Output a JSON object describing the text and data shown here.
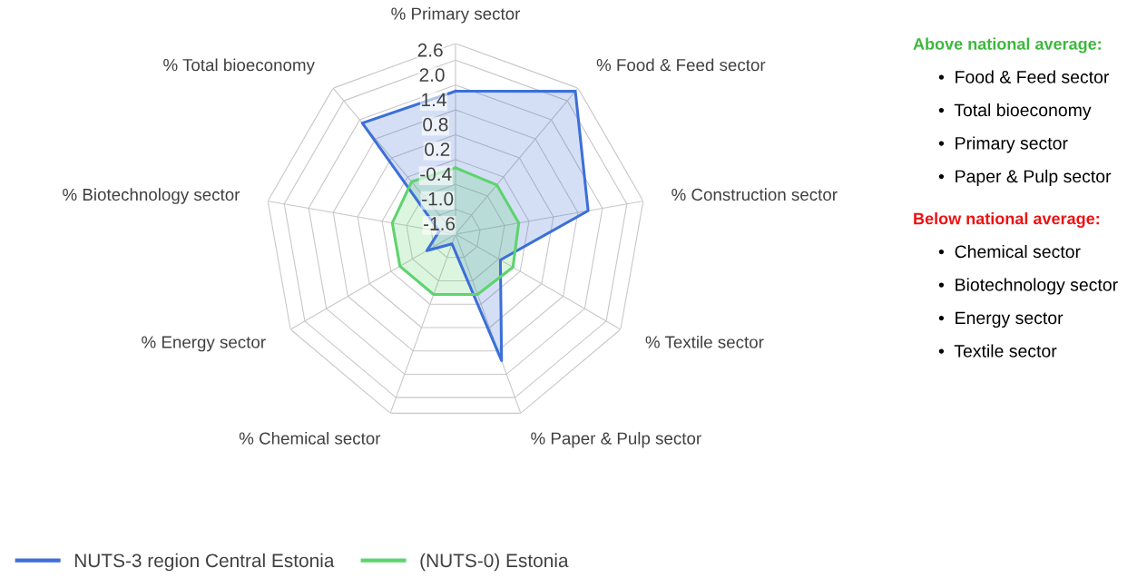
{
  "chart_data": {
    "type": "radar",
    "categories": [
      "% Primary sector",
      "% Food & Feed sector",
      "% Construction sector",
      "% Textile sector",
      "% Paper & Pulp sector",
      "% Chemical sector",
      "% Energy sector",
      "% Biotechnology sector",
      "% Total bioeconomy"
    ],
    "series": [
      {
        "name": "NUTS-3 region Central Estonia",
        "color": "#3c6fd8",
        "values": [
          1.85,
          2.9,
          1.65,
          -0.35,
          1.65,
          -1.35,
          -0.8,
          -1.2,
          1.9
        ]
      },
      {
        "name": "(NUTS-0) Estonia",
        "color": "#5ed36e",
        "values": [
          0.0,
          -0.05,
          -0.05,
          0.0,
          -0.05,
          -0.05,
          -0.05,
          -0.05,
          0.05
        ]
      }
    ],
    "ylim": [
      -1.6,
      3.0
    ],
    "yticks": [
      -1.6,
      {
        "value": -1.0,
        "label": "-1.0"
      },
      -0.4,
      0.2,
      0.8,
      1.4,
      {
        "value": 2.0,
        "label": "2.0"
      },
      2.6
    ],
    "grid": true,
    "legend": "bottom left",
    "annotations": [
      "Above national average:",
      "•  Food & Feed sector",
      "•  Total bioeconomy",
      "•  Primary sector",
      "•  Paper & Pulp sector",
      "Below national average:",
      "•  Chemical sector",
      "•  Biotechnology sector",
      "•  Energy sector",
      "•  Textile sector"
    ]
  }
}
